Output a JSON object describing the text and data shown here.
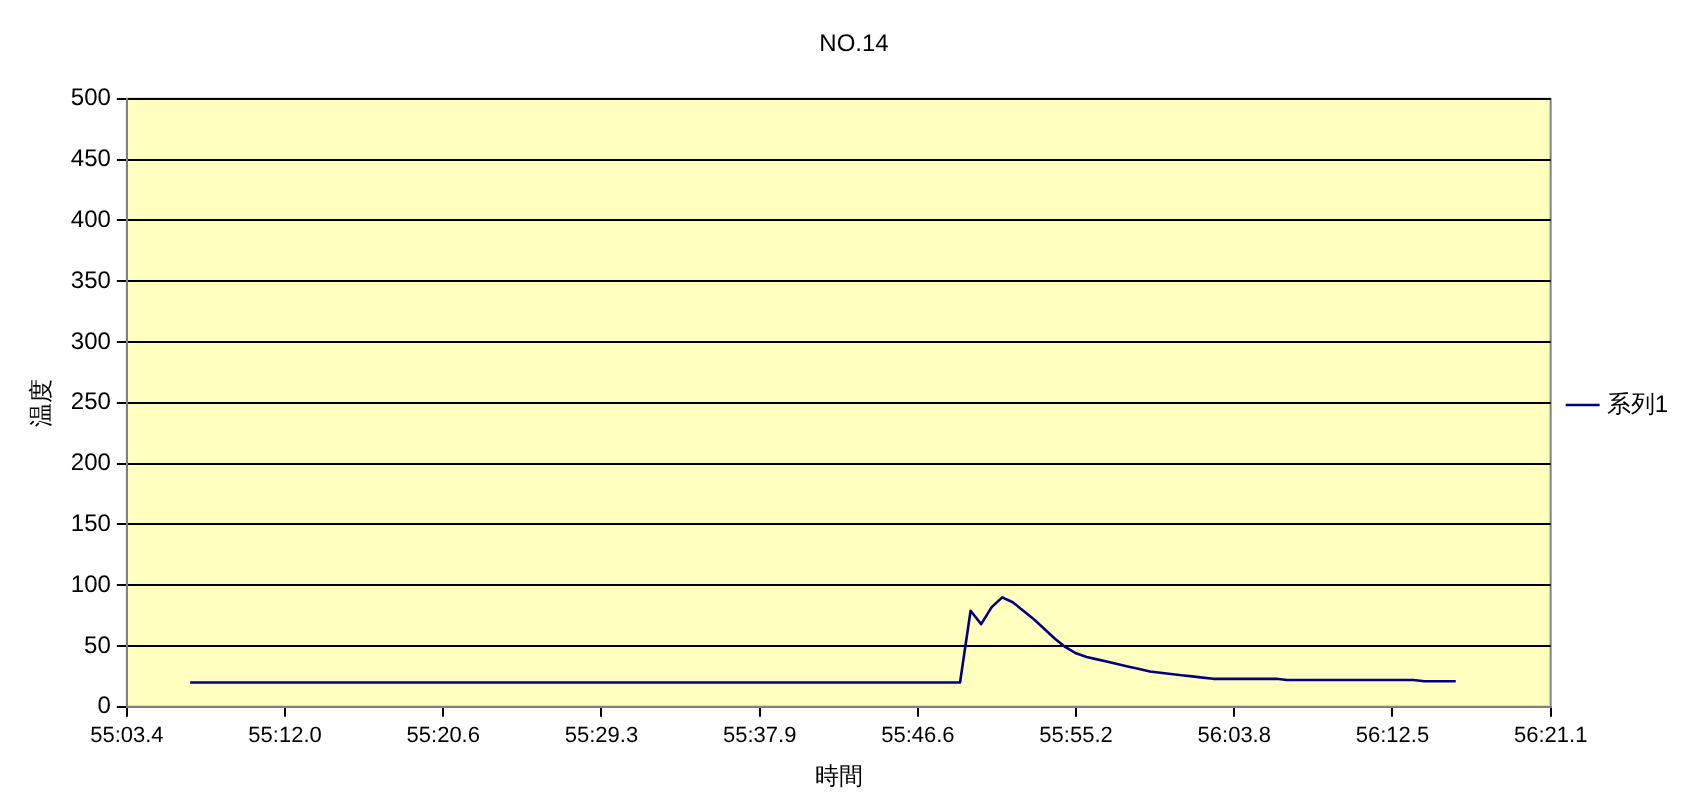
{
  "chart_data": {
    "type": "line",
    "title": "NO.14",
    "xlabel": "時間",
    "ylabel": "温度",
    "categories": [
      "55:03.4",
      null,
      null,
      null,
      null,
      null,
      null,
      null,
      null,
      null,
      null,
      null,
      null,
      null,
      null,
      "55:12.0",
      null,
      null,
      null,
      null,
      null,
      null,
      null,
      null,
      null,
      null,
      null,
      null,
      null,
      null,
      "55:20.6",
      null,
      null,
      null,
      null,
      null,
      null,
      null,
      null,
      null,
      null,
      null,
      null,
      null,
      null,
      "55:29.3",
      null,
      null,
      null,
      null,
      null,
      null,
      null,
      null,
      null,
      null,
      null,
      null,
      null,
      null,
      "55:37.9",
      null,
      null,
      null,
      null,
      null,
      null,
      null,
      null,
      null,
      null,
      null,
      null,
      null,
      null,
      "55:46.6",
      null,
      null,
      null,
      null,
      null,
      null,
      null,
      null,
      null,
      null,
      null,
      null,
      null,
      null,
      "55:55.2",
      null,
      null,
      null,
      null,
      null,
      null,
      null,
      null,
      null,
      null,
      null,
      null,
      null,
      null,
      "56:03.8",
      null,
      null,
      null,
      null,
      null,
      null,
      null,
      null,
      null,
      null,
      null,
      null,
      null,
      null,
      "56:12.5",
      null,
      null,
      null,
      null,
      null,
      null,
      null,
      null,
      null,
      null,
      null,
      null,
      null,
      null,
      "56:21.1"
    ],
    "series": [
      {
        "name": "系列1",
        "color": "#000080",
        "values": [
          null,
          null,
          null,
          null,
          null,
          null,
          20,
          20,
          20,
          20,
          20,
          20,
          20,
          20,
          20,
          20,
          20,
          20,
          20,
          20,
          20,
          20,
          20,
          20,
          20,
          20,
          20,
          20,
          20,
          20,
          20,
          20,
          20,
          20,
          20,
          20,
          20,
          20,
          20,
          20,
          20,
          20,
          20,
          20,
          20,
          20,
          20,
          20,
          20,
          20,
          20,
          20,
          20,
          20,
          20,
          20,
          20,
          20,
          20,
          20,
          20,
          20,
          20,
          20,
          20,
          20,
          20,
          20,
          20,
          20,
          20,
          20,
          20,
          20,
          20,
          20,
          20,
          20,
          20,
          20,
          79,
          68,
          82,
          90,
          86,
          79,
          72,
          64,
          56,
          49,
          44,
          41,
          39,
          37,
          35,
          33,
          31,
          29,
          28,
          27,
          26,
          25,
          24,
          23,
          23,
          23,
          23,
          23,
          23,
          23,
          22,
          22,
          22,
          22,
          22,
          22,
          22,
          22,
          22,
          22,
          22,
          22,
          22,
          21,
          21,
          21,
          21,
          null,
          null,
          null,
          null,
          null,
          null,
          null,
          null,
          null
        ]
      }
    ],
    "ylim": [
      0,
      500
    ],
    "yticks": [
      0,
      50,
      100,
      150,
      200,
      250,
      300,
      350,
      400,
      450,
      500
    ],
    "grid": "y",
    "legend": "right",
    "marker": "none",
    "line_style": "solid"
  }
}
